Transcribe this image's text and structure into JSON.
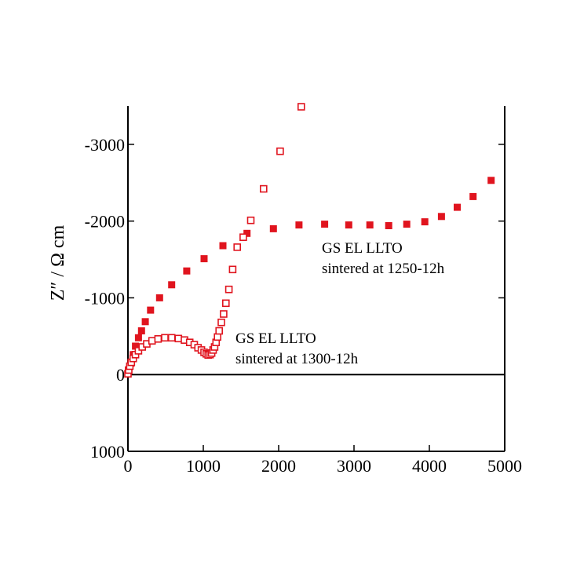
{
  "chart_data": {
    "type": "scatter",
    "title": "",
    "xlabel": "",
    "ylabel": "Z″ / Ω cm",
    "xlim": [
      0,
      5000
    ],
    "ylim": [
      1000,
      -3500
    ],
    "x_ticks": [
      0,
      1000,
      2000,
      3000,
      4000,
      5000
    ],
    "y_ticks": [
      -3000,
      -2000,
      -1000,
      0,
      1000
    ],
    "x_tick_labels": [
      "0",
      "1000",
      "2000",
      "3000",
      "4000",
      "5000"
    ],
    "y_tick_labels": [
      "-3000",
      "-2000",
      "-1000",
      "0",
      "1000"
    ],
    "zero_line": true,
    "grid": false,
    "series": [
      {
        "marker": "filled-square",
        "color": "#e0141e",
        "points": [
          [
            5,
            -50
          ],
          [
            40,
            -150
          ],
          [
            70,
            -260
          ],
          [
            100,
            -370
          ],
          [
            140,
            -480
          ],
          [
            180,
            -570
          ],
          [
            230,
            -690
          ],
          [
            300,
            -840
          ],
          [
            420,
            -1000
          ],
          [
            580,
            -1170
          ],
          [
            780,
            -1350
          ],
          [
            1010,
            -1510
          ],
          [
            1260,
            -1680
          ],
          [
            1580,
            -1840
          ],
          [
            1930,
            -1900
          ],
          [
            2270,
            -1950
          ],
          [
            2610,
            -1960
          ],
          [
            2930,
            -1950
          ],
          [
            3210,
            -1950
          ],
          [
            3460,
            -1940
          ],
          [
            3700,
            -1960
          ],
          [
            3940,
            -1990
          ],
          [
            4160,
            -2060
          ],
          [
            4370,
            -2180
          ],
          [
            4580,
            -2320
          ],
          [
            4820,
            -2530
          ]
        ]
      },
      {
        "marker": "open-square",
        "color": "#e0141e",
        "points": [
          [
            0,
            -10
          ],
          [
            10,
            -60
          ],
          [
            25,
            -110
          ],
          [
            45,
            -160
          ],
          [
            70,
            -210
          ],
          [
            100,
            -260
          ],
          [
            140,
            -310
          ],
          [
            190,
            -360
          ],
          [
            250,
            -400
          ],
          [
            320,
            -440
          ],
          [
            400,
            -465
          ],
          [
            490,
            -480
          ],
          [
            580,
            -480
          ],
          [
            670,
            -470
          ],
          [
            750,
            -450
          ],
          [
            820,
            -420
          ],
          [
            880,
            -390
          ],
          [
            930,
            -350
          ],
          [
            975,
            -320
          ],
          [
            1010,
            -290
          ],
          [
            1040,
            -270
          ],
          [
            1065,
            -255
          ],
          [
            1090,
            -260
          ],
          [
            1110,
            -280
          ],
          [
            1130,
            -320
          ],
          [
            1150,
            -360
          ],
          [
            1170,
            -420
          ],
          [
            1190,
            -490
          ],
          [
            1210,
            -570
          ],
          [
            1240,
            -680
          ],
          [
            1270,
            -790
          ],
          [
            1300,
            -930
          ],
          [
            1340,
            -1110
          ],
          [
            1390,
            -1370
          ],
          [
            1450,
            -1660
          ],
          [
            1530,
            -1790
          ],
          [
            1630,
            -2010
          ],
          [
            1800,
            -2420
          ],
          [
            2020,
            -2910
          ],
          [
            2300,
            -3490
          ]
        ]
      }
    ],
    "annotations": [
      {
        "lines": [
          "GS EL LLTO",
          "sintered at 1250-12h"
        ]
      },
      {
        "lines": [
          "GS EL LLTO",
          "sintered at 1300-12h"
        ]
      }
    ]
  }
}
